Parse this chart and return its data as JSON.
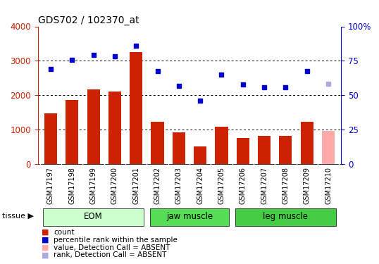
{
  "title": "GDS702 / 102370_at",
  "samples": [
    "GSM17197",
    "GSM17198",
    "GSM17199",
    "GSM17200",
    "GSM17201",
    "GSM17202",
    "GSM17203",
    "GSM17204",
    "GSM17205",
    "GSM17206",
    "GSM17207",
    "GSM17208",
    "GSM17209",
    "GSM17210"
  ],
  "bar_values": [
    1470,
    1860,
    2160,
    2100,
    3250,
    1220,
    920,
    500,
    1080,
    750,
    820,
    820,
    1230,
    950
  ],
  "bar_colors": [
    "#cc2200",
    "#cc2200",
    "#cc2200",
    "#cc2200",
    "#cc2200",
    "#cc2200",
    "#cc2200",
    "#cc2200",
    "#cc2200",
    "#cc2200",
    "#cc2200",
    "#cc2200",
    "#cc2200",
    "#ffaaaa"
  ],
  "scatter_values": [
    2760,
    3030,
    3170,
    3120,
    3430,
    2690,
    2270,
    1840,
    2600,
    2310,
    2230,
    2230,
    2700,
    2330
  ],
  "scatter_colors": [
    "#0000cc",
    "#0000cc",
    "#0000cc",
    "#0000cc",
    "#0000cc",
    "#0000cc",
    "#0000cc",
    "#0000cc",
    "#0000cc",
    "#0000cc",
    "#0000cc",
    "#0000cc",
    "#0000cc",
    "#aaaadd"
  ],
  "ylim_left": [
    0,
    4000
  ],
  "ylim_right": [
    0,
    100
  ],
  "yticks_left": [
    0,
    1000,
    2000,
    3000,
    4000
  ],
  "yticks_right": [
    0,
    25,
    50,
    75,
    100
  ],
  "ytick_labels_right": [
    "0",
    "25",
    "50",
    "75",
    "100%"
  ],
  "grid_values": [
    1000,
    2000,
    3000
  ],
  "tissue_groups": [
    {
      "label": "EOM",
      "start": 0,
      "end": 4,
      "color": "#ccffcc"
    },
    {
      "label": "jaw muscle",
      "start": 5,
      "end": 8,
      "color": "#55dd55"
    },
    {
      "label": "leg muscle",
      "start": 9,
      "end": 13,
      "color": "#44cc44"
    }
  ],
  "legend_items": [
    {
      "label": "count",
      "color": "#cc2200"
    },
    {
      "label": "percentile rank within the sample",
      "color": "#0000cc"
    },
    {
      "label": "value, Detection Call = ABSENT",
      "color": "#ffaaaa"
    },
    {
      "label": "rank, Detection Call = ABSENT",
      "color": "#aaaadd"
    }
  ],
  "tissue_label": "tissue",
  "tick_label_color_left": "#cc2200",
  "tick_label_color_right": "#0000cc",
  "xtick_bg_color": "#cccccc",
  "fig_bg_color": "#ffffff"
}
